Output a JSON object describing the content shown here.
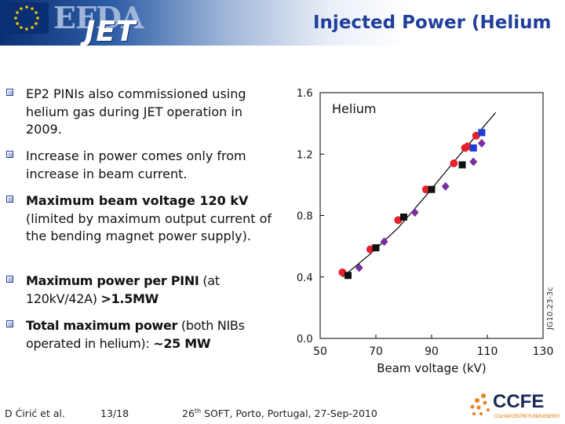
{
  "header": {
    "logo_text_1": "EFDA",
    "logo_text_2": "JET",
    "title": "Injected Power (Helium"
  },
  "bullets": [
    {
      "text": "EP2 PINIs also commissioned using helium gas during JET operation in 2009."
    },
    {
      "text": "Increase in power comes only from increase in beam current."
    },
    {
      "bold": "Maximum beam voltage 120 kV",
      "rest": " (limited by maximum output current of the bending magnet power supply)."
    },
    {
      "bold": "Maximum power per PINI",
      "mid": " (at 120kV/42A) ",
      "bold2": ">1.5MW"
    },
    {
      "bold": "Total maximum power",
      "mid": " (both NIBs operated in helium): ",
      "bold2": "~25 MW"
    }
  ],
  "chart_data": {
    "type": "scatter",
    "title": "Helium",
    "xlabel": "Beam voltage (kV)",
    "ylabel": "",
    "xlim": [
      50,
      130
    ],
    "ylim": [
      0.0,
      1.6
    ],
    "xticks": [
      "50",
      "70",
      "90",
      "110",
      "130"
    ],
    "yticks": [
      "0.0",
      "0.4",
      "0.8",
      "1.2",
      "1.6"
    ],
    "side_label": "JG10.23-3c",
    "fit_line": [
      [
        58,
        0.4
      ],
      [
        68,
        0.55
      ],
      [
        78,
        0.72
      ],
      [
        88,
        0.93
      ],
      [
        98,
        1.15
      ],
      [
        105,
        1.3
      ],
      [
        113,
        1.47
      ]
    ],
    "series": [
      {
        "marker": "circle",
        "color": "#e8202a",
        "points": [
          [
            58,
            0.43
          ],
          [
            68,
            0.58
          ],
          [
            78,
            0.77
          ],
          [
            88,
            0.97
          ],
          [
            98,
            1.14
          ],
          [
            102,
            1.24
          ],
          [
            103,
            1.25
          ],
          [
            106,
            1.32
          ]
        ]
      },
      {
        "marker": "square",
        "color": "#111111",
        "points": [
          [
            60,
            0.41
          ],
          [
            70,
            0.59
          ],
          [
            80,
            0.79
          ],
          [
            90,
            0.97
          ],
          [
            101,
            1.13
          ]
        ]
      },
      {
        "marker": "diamond",
        "color": "#7a2fa0",
        "points": [
          [
            64,
            0.46
          ],
          [
            73,
            0.63
          ],
          [
            84,
            0.82
          ],
          [
            95,
            0.99
          ],
          [
            105,
            1.15
          ],
          [
            108,
            1.27
          ]
        ]
      },
      {
        "marker": "square",
        "color": "#1b3fd0",
        "points": [
          [
            105,
            1.24
          ],
          [
            108,
            1.34
          ]
        ]
      }
    ]
  },
  "footer": {
    "author": "D Ćirić et al.",
    "page": "13/18",
    "ordinal": "26",
    "ordinal_sup": "th",
    "conference": " SOFT, Porto, Portugal, 27-Sep-2010",
    "logo_text": "CCFE",
    "logo_subtext": "CULHAM CENTRE FUSION ENERGY"
  },
  "colors": {
    "title": "#1f3f9b",
    "bullet_box": "#1f3f9b",
    "accent_orange": "#e8821e"
  }
}
